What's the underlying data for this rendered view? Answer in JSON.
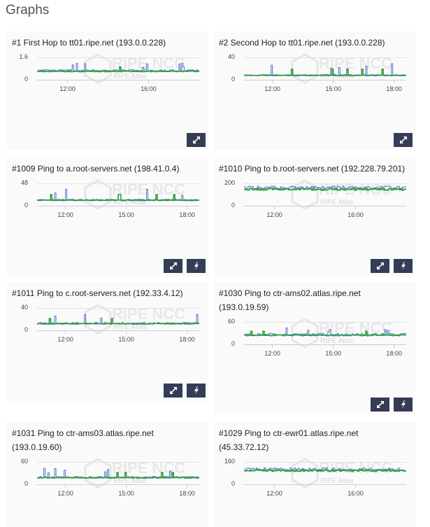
{
  "page": {
    "title": "Graphs"
  },
  "watermark": {
    "brand": "RIPE NCC",
    "product": "RIPE Atlas"
  },
  "colors": {
    "series_a": "#4a78d0",
    "series_b": "#2e9a3c",
    "button": "#343d55"
  },
  "cards": [
    {
      "title": [
        "#1 First Hop to tt01.ripe.net (193.0.0.228)"
      ],
      "y_max_label": "1.6",
      "y_min_label": "0",
      "y_max": 1.6,
      "typical_value": 0.62,
      "spike_value": 1.2,
      "time_range_hours": [
        10.5,
        18.5
      ],
      "ticks": [
        {
          "h": 12,
          "label": "12:00"
        },
        {
          "h": 16,
          "label": "16:00"
        }
      ],
      "buttons": [
        "expand"
      ]
    },
    {
      "title": [
        "#2 Second Hop to tt01.ripe.net (193.0.0.228)"
      ],
      "y_max_label": "40",
      "y_min_label": "0",
      "y_max": 40,
      "typical_value": 8,
      "spike_value": 30,
      "time_range_hours": [
        10.6,
        18.6
      ],
      "ticks": [
        {
          "h": 12,
          "label": "12:00"
        },
        {
          "h": 15,
          "label": "15:00"
        },
        {
          "h": 18,
          "label": "18:00"
        }
      ],
      "buttons": [
        "expand"
      ]
    },
    {
      "title": [
        "#1009 Ping to a.root-servers.net (198.41.0.4)"
      ],
      "y_max_label": "48",
      "y_min_label": "0",
      "y_max": 48,
      "typical_value": 12,
      "spike_value": 36,
      "time_range_hours": [
        10.6,
        18.6
      ],
      "ticks": [
        {
          "h": 12,
          "label": "12:00"
        },
        {
          "h": 15,
          "label": "15:00"
        },
        {
          "h": 18,
          "label": "18:00"
        }
      ],
      "buttons": [
        "expand",
        "bolt"
      ]
    },
    {
      "title": [
        "#1010 Ping to b.root-servers.net (192.228.79.201)"
      ],
      "y_max_label": "200",
      "y_min_label": "0",
      "y_max": 200,
      "typical_value": 150,
      "spike_value": 165,
      "time_range_hours": [
        10.5,
        18.5
      ],
      "ticks": [
        {
          "h": 12,
          "label": "12:00"
        },
        {
          "h": 16,
          "label": "16:00"
        }
      ],
      "buttons": [
        "expand",
        "bolt"
      ]
    },
    {
      "title": [
        "#1011 Ping to c.root-servers.net (192.33.4.12)"
      ],
      "y_max_label": "40",
      "y_min_label": "0",
      "y_max": 40,
      "typical_value": 12,
      "spike_value": 30,
      "time_range_hours": [
        10.6,
        18.6
      ],
      "ticks": [
        {
          "h": 12,
          "label": "12:00"
        },
        {
          "h": 15,
          "label": "15:00"
        },
        {
          "h": 18,
          "label": "18:00"
        }
      ],
      "buttons": [
        "expand",
        "bolt"
      ]
    },
    {
      "title": [
        "#1030 Ping to ctr-ams02.atlas.ripe.net",
        "(193.0.19.59)"
      ],
      "y_max_label": "60",
      "y_min_label": "0",
      "y_max": 60,
      "typical_value": 25,
      "spike_value": 45,
      "time_range_hours": [
        10.6,
        18.6
      ],
      "ticks": [
        {
          "h": 12,
          "label": "12:00"
        },
        {
          "h": 15,
          "label": "15:00"
        },
        {
          "h": 18,
          "label": "18:00"
        }
      ],
      "buttons": [
        "expand",
        "bolt"
      ]
    },
    {
      "title": [
        "#1031 Ping to ctr-ams03.atlas.ripe.net",
        "(193.0.19.60)"
      ],
      "y_max_label": "60",
      "y_min_label": "0",
      "y_max": 60,
      "typical_value": 18,
      "spike_value": 45,
      "time_range_hours": [
        10.6,
        18.6
      ],
      "ticks": [
        {
          "h": 12,
          "label": "12:00"
        },
        {
          "h": 15,
          "label": "15:00"
        },
        {
          "h": 18,
          "label": "18:00"
        }
      ],
      "buttons": []
    },
    {
      "title": [
        "#1029 Ping to ctr-ewr01.atlas.ripe.net",
        "(45.33.72.12)"
      ],
      "y_max_label": "160",
      "y_min_label": "0",
      "y_max": 160,
      "typical_value": 100,
      "spike_value": 110,
      "time_range_hours": [
        10.5,
        18.5
      ],
      "ticks": [
        {
          "h": 12,
          "label": "12:00"
        },
        {
          "h": 16,
          "label": "16:00"
        }
      ],
      "buttons": []
    }
  ]
}
